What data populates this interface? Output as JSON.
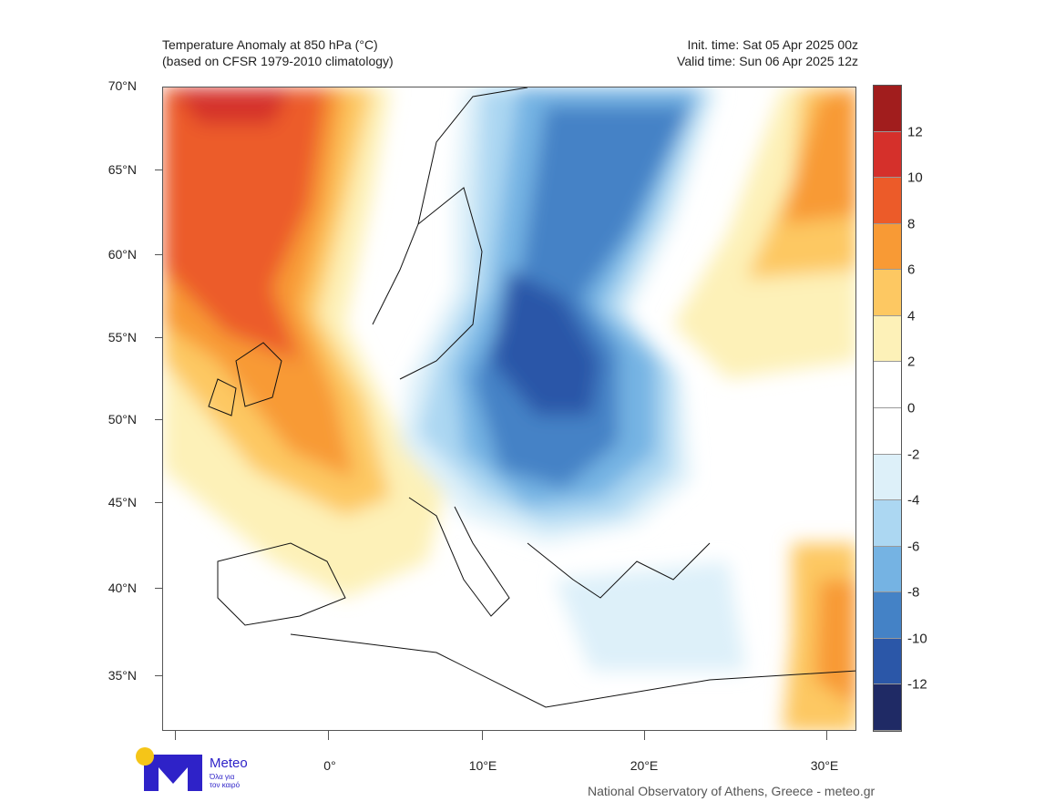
{
  "header": {
    "title_line1": "Temperature Anomaly at 850 hPa (°C)",
    "title_line2": "(based on CFSR 1979-2010 climatology)",
    "init_time": "Init. time: Sat 05 Apr 2025 00z",
    "valid_time": "Valid time: Sun 06 Apr 2025 12z"
  },
  "axes": {
    "lat_labels": [
      "70°N",
      "65°N",
      "60°N",
      "55°N",
      "50°N",
      "45°N",
      "40°N",
      "35°N"
    ],
    "lon_labels": [
      "0°",
      "10°E",
      "20°E",
      "30°E"
    ]
  },
  "colorbar": {
    "labels": [
      "12",
      "10",
      "8",
      "6",
      "4",
      "2",
      "0",
      "-2",
      "-4",
      "-6",
      "-8",
      "-10",
      "-12"
    ],
    "colors": [
      "#a11d1d",
      "#d5302b",
      "#ec5b29",
      "#f89a35",
      "#fdc862",
      "#fdf1b8",
      "#ffffff",
      "#ffffff",
      "#ddf0f9",
      "#acd7f2",
      "#75b3e3",
      "#4482c6",
      "#2b57a8",
      "#1f2a65"
    ]
  },
  "logo": {
    "name": "Meteo",
    "tagline_line1": "Όλα για",
    "tagline_line2": "τον καιρό",
    "brand_color": "#2e22c8",
    "sun_color": "#f5c518"
  },
  "footer": {
    "credit": "National Observatory of Athens, Greece - meteo.gr"
  }
}
